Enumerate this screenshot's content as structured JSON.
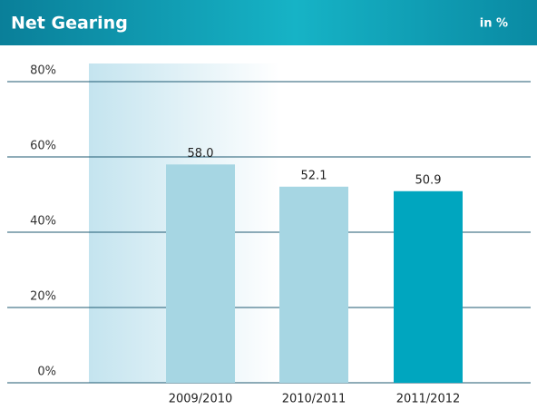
{
  "chart_data": {
    "type": "bar",
    "title": "Net Gearing",
    "unit_label": "in %",
    "categories": [
      "2009/2010",
      "2010/2011",
      "2011/2012"
    ],
    "values": [
      58.0,
      52.1,
      50.9
    ],
    "value_labels": [
      "58.0",
      "52.1",
      "50.9"
    ],
    "colors": [
      "#a6d6e3",
      "#a6d6e3",
      "#00a6bf"
    ],
    "ylim": [
      0,
      80
    ],
    "yticks": [
      {
        "value": 0,
        "label": "0%"
      },
      {
        "value": 20,
        "label": "20%"
      },
      {
        "value": 40,
        "label": "40%"
      },
      {
        "value": 60,
        "label": "60%"
      },
      {
        "value": 80,
        "label": "80%"
      }
    ],
    "grid": true
  }
}
